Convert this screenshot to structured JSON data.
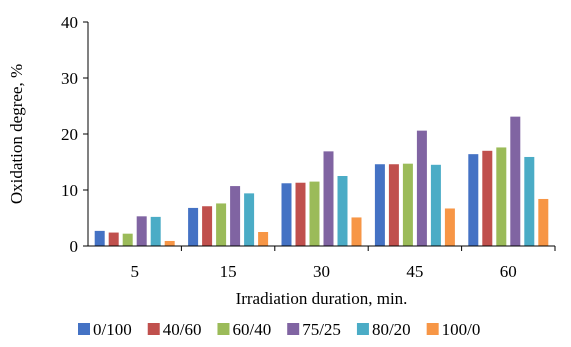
{
  "chart_data": {
    "type": "bar",
    "title": "",
    "xlabel": "Irradiation duration, min.",
    "ylabel": "Oxidation degree, %",
    "ylim": [
      0,
      40
    ],
    "yticks": [
      0,
      10,
      20,
      30,
      40
    ],
    "grid": false,
    "legend_position": "bottom",
    "categories": [
      "5",
      "15",
      "30",
      "45",
      "60"
    ],
    "series": [
      {
        "name": "0/100",
        "color": "#4472c4",
        "values": [
          2.7,
          6.8,
          11.2,
          14.6,
          16.4
        ]
      },
      {
        "name": "40/60",
        "color": "#c0504d",
        "values": [
          2.4,
          7.1,
          11.3,
          14.6,
          17.0
        ]
      },
      {
        "name": "60/40",
        "color": "#9bbb59",
        "values": [
          2.2,
          7.6,
          11.5,
          14.7,
          17.6
        ]
      },
      {
        "name": "75/25",
        "color": "#8064a2",
        "values": [
          5.3,
          10.7,
          16.9,
          20.6,
          23.1
        ]
      },
      {
        "name": "80/20",
        "color": "#4bacc6",
        "values": [
          5.2,
          9.4,
          12.5,
          14.5,
          15.9
        ]
      },
      {
        "name": "100/0",
        "color": "#f79646",
        "values": [
          0.9,
          2.5,
          5.1,
          6.7,
          8.4
        ]
      }
    ]
  }
}
